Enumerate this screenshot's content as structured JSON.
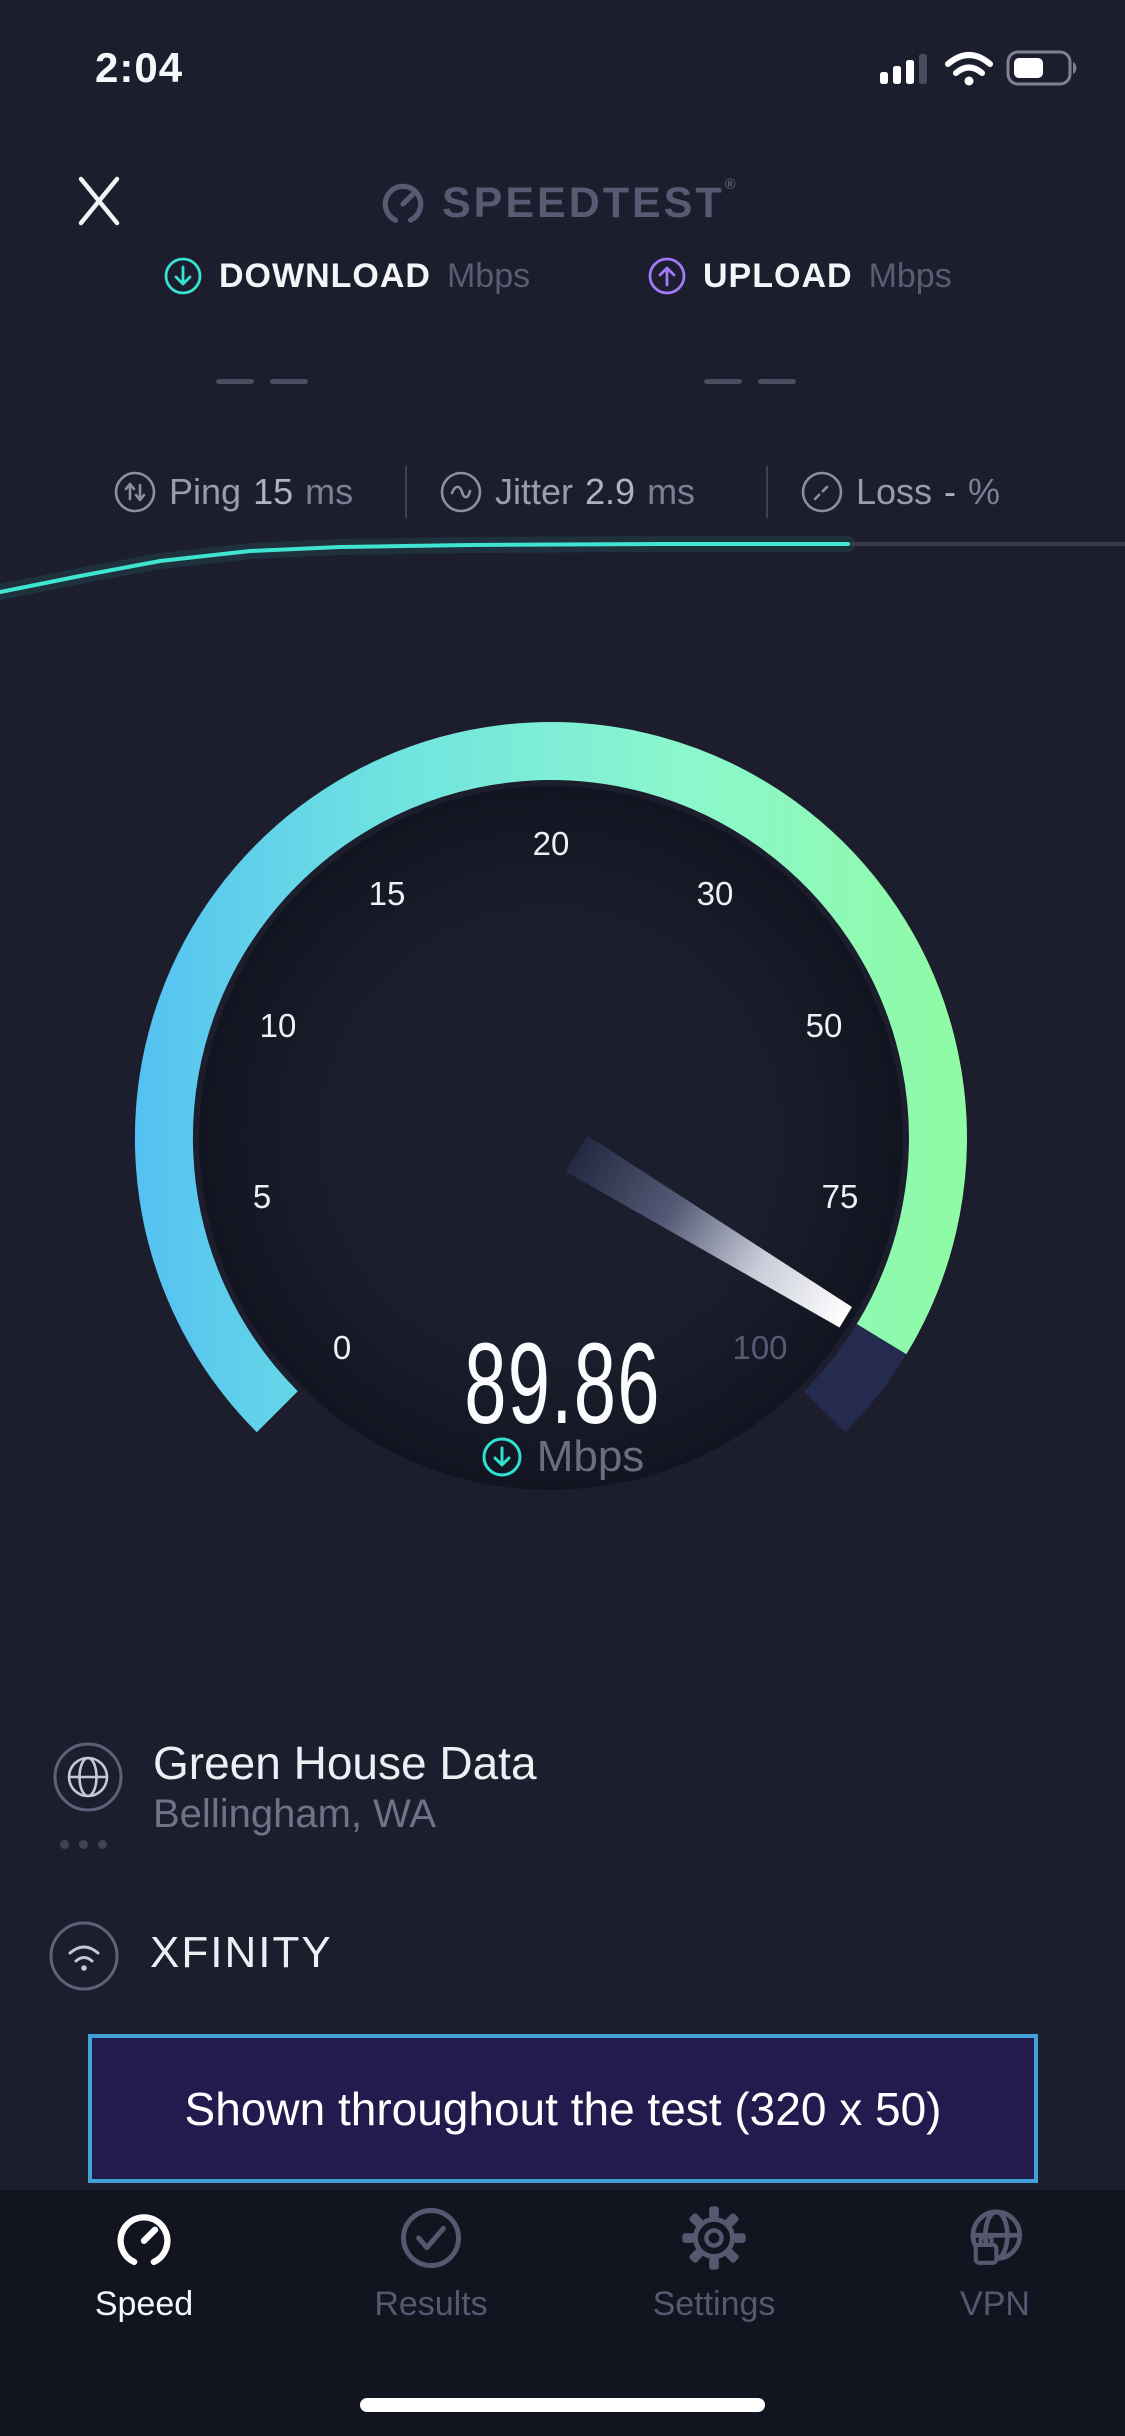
{
  "status_bar": {
    "time": "2:04",
    "battery_level_pct": 55
  },
  "header": {
    "logo_text": "SPEEDTEST",
    "logo_mark": "®"
  },
  "test": {
    "download": {
      "label": "DOWNLOAD",
      "unit": "Mbps",
      "placeholder": "— —"
    },
    "upload": {
      "label": "UPLOAD",
      "unit": "Mbps",
      "placeholder": "— —"
    }
  },
  "stats": {
    "ping": {
      "label": "Ping",
      "value": "15",
      "unit": "ms"
    },
    "jitter": {
      "label": "Jitter",
      "value": "2.9",
      "unit": "ms"
    },
    "loss": {
      "label": "Loss",
      "value": "-",
      "unit": "%"
    }
  },
  "gauge": {
    "scale": [
      0,
      5,
      10,
      15,
      20,
      30,
      50,
      75,
      100
    ],
    "value": "89.86",
    "unit": "Mbps",
    "start_angle_deg": 225,
    "sweep_deg": 270,
    "colors": {
      "arc_start": "#55c1f2",
      "arc_mid1": "#6fe3e0",
      "arc_mid2": "#8bf7cd",
      "arc_end": "#90fba2",
      "arc_remainder": "#242b4e"
    }
  },
  "sparkline": {
    "color": "#3fe4d2",
    "trail_color": "#373b4c",
    "live_points": [
      [
        0,
        592
      ],
      [
        80,
        576
      ],
      [
        160,
        561
      ],
      [
        250,
        551
      ],
      [
        340,
        547
      ],
      [
        470,
        545
      ],
      [
        660,
        544
      ],
      [
        848,
        544
      ]
    ],
    "trail_points": [
      [
        848,
        544
      ],
      [
        1125,
        544
      ]
    ]
  },
  "server": {
    "name": "Green House Data",
    "location": "Bellingham, WA"
  },
  "connection": {
    "name": "XFINITY"
  },
  "ad": {
    "text": "Shown throughout the test (320 x 50)"
  },
  "tab_bar": {
    "tabs": [
      {
        "label": "Speed",
        "active": true
      },
      {
        "label": "Results",
        "active": false
      },
      {
        "label": "Settings",
        "active": false
      },
      {
        "label": "VPN",
        "active": false
      }
    ]
  }
}
